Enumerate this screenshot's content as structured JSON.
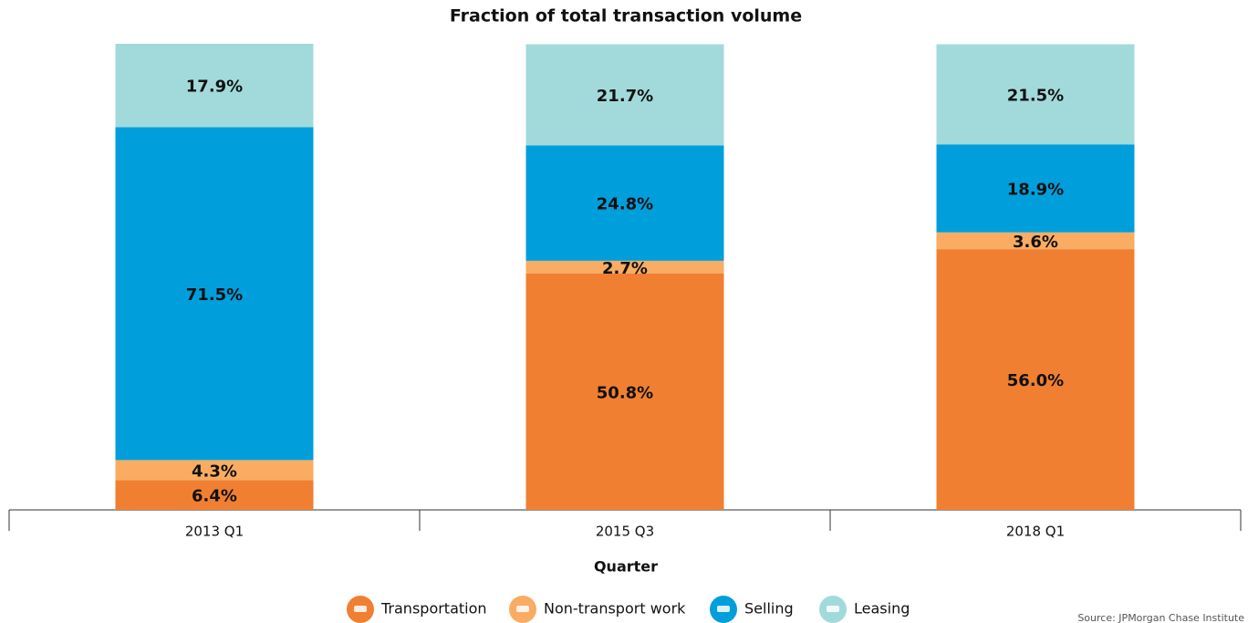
{
  "chart_data": {
    "type": "stacked-bar",
    "title": "Fraction of total transaction volume",
    "x_label": "Quarter",
    "source": "Source: JPMorgan Chase Institute",
    "categories": [
      "2013 Q1",
      "2015 Q3",
      "2018 Q1"
    ],
    "series": [
      {
        "name": "Transportation",
        "color": "#f07f32",
        "values": [
          6.4,
          50.8,
          56.0
        ],
        "value_labels": [
          "6.4%",
          "50.8%",
          "56.0%"
        ]
      },
      {
        "name": "Non-transport work",
        "color": "#f9ac62",
        "values": [
          4.3,
          2.7,
          3.6
        ],
        "value_labels": [
          "4.3%",
          "2.7%",
          "3.6%"
        ]
      },
      {
        "name": "Selling",
        "color": "#009fdb",
        "values": [
          71.5,
          24.8,
          18.9
        ],
        "value_labels": [
          "71.5%",
          "24.8%",
          "18.9%"
        ]
      },
      {
        "name": "Leasing",
        "color": "#a2dadb",
        "values": [
          17.9,
          21.7,
          21.5
        ],
        "value_labels": [
          "17.9%",
          "21.7%",
          "21.5%"
        ]
      }
    ]
  }
}
